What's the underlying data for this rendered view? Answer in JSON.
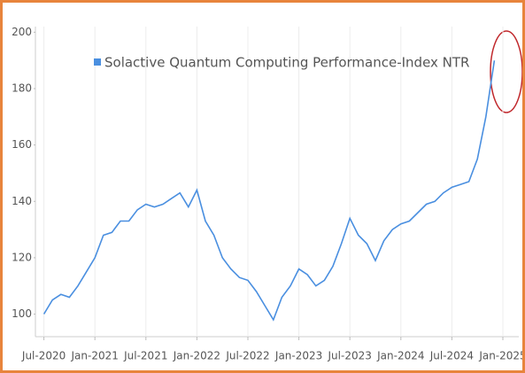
{
  "chart_data": {
    "type": "line",
    "x": [
      "2020-07",
      "2020-08",
      "2020-09",
      "2020-10",
      "2020-11",
      "2020-12",
      "2021-01",
      "2021-02",
      "2021-03",
      "2021-04",
      "2021-05",
      "2021-06",
      "2021-07",
      "2021-08",
      "2021-09",
      "2021-10",
      "2021-11",
      "2021-12",
      "2022-01",
      "2022-02",
      "2022-03",
      "2022-04",
      "2022-05",
      "2022-06",
      "2022-07",
      "2022-08",
      "2022-09",
      "2022-10",
      "2022-11",
      "2022-12",
      "2023-01",
      "2023-02",
      "2023-03",
      "2023-04",
      "2023-05",
      "2023-06",
      "2023-07",
      "2023-08",
      "2023-09",
      "2023-10",
      "2023-11",
      "2023-12",
      "2024-01",
      "2024-02",
      "2024-03",
      "2024-04",
      "2024-05",
      "2024-06",
      "2024-07",
      "2024-08",
      "2024-09",
      "2024-10",
      "2024-11",
      "2024-12"
    ],
    "series": [
      {
        "name": "Solactive Quantum Computing Performance-Index NTR",
        "color": "#4a8fe0",
        "values": [
          100,
          105,
          107,
          106,
          110,
          115,
          120,
          128,
          129,
          133,
          133,
          137,
          139,
          138,
          139,
          141,
          143,
          138,
          144,
          133,
          128,
          120,
          116,
          113,
          112,
          108,
          103,
          98,
          106,
          110,
          116,
          114,
          110,
          112,
          117,
          125,
          134,
          128,
          125,
          119,
          126,
          130,
          132,
          133,
          136,
          139,
          140,
          143,
          145,
          146,
          147,
          155,
          170,
          190
        ]
      }
    ],
    "xlim": [
      "2020-06",
      "2025-01"
    ],
    "xticks": [
      {
        "value": "2020-07",
        "label": "Jul-2020"
      },
      {
        "value": "2021-01",
        "label": "Jan-2021"
      },
      {
        "value": "2021-07",
        "label": "Jul-2021"
      },
      {
        "value": "2022-01",
        "label": "Jan-2022"
      },
      {
        "value": "2022-07",
        "label": "Jul-2022"
      },
      {
        "value": "2023-01",
        "label": "Jan-2023"
      },
      {
        "value": "2023-07",
        "label": "Jul-2023"
      },
      {
        "value": "2024-01",
        "label": "Jan-2024"
      },
      {
        "value": "2024-07",
        "label": "Jul-2024"
      },
      {
        "value": "2025-01",
        "label": "Jan-2025"
      }
    ],
    "ylim": [
      92,
      202
    ],
    "yticks": [
      100,
      120,
      140,
      160,
      180,
      200
    ],
    "grid": true,
    "legend": "top"
  }
}
